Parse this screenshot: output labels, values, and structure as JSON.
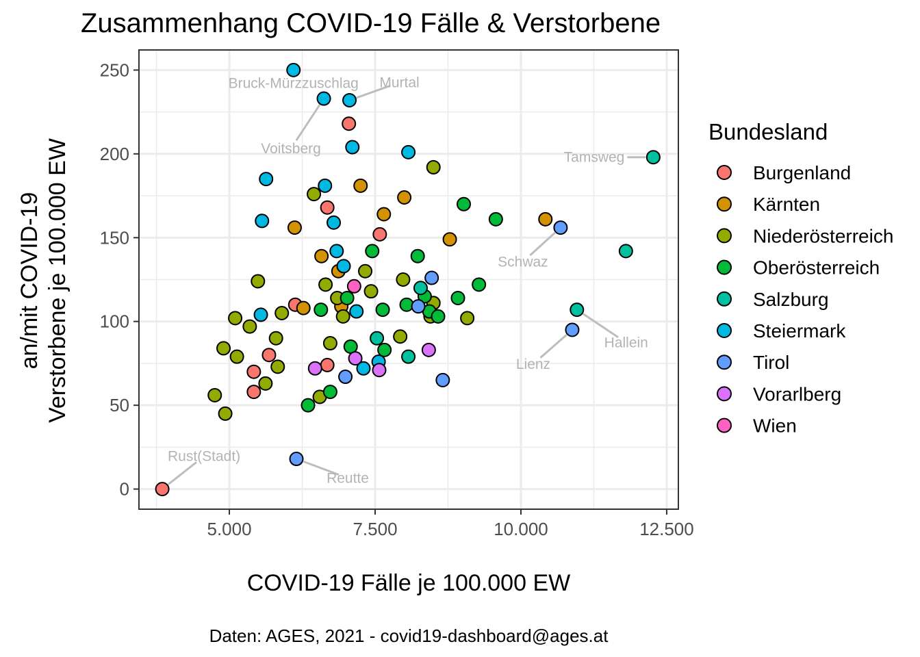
{
  "chart_data": {
    "type": "scatter",
    "title": "Zusammenhang COVID-19 Fälle & Verstorbene",
    "xlabel": "COVID-19 Fälle je 100.000 EW",
    "ylabel": [
      "an/mit COVID-19",
      "Verstorbene je 100.000 EW"
    ],
    "caption": "Daten: AGES, 2021 - covid19-dashboard@ages.at",
    "xlim": [
      3450,
      12700
    ],
    "ylim": [
      -12,
      262
    ],
    "x_ticks": [
      5000,
      7500,
      10000,
      12500
    ],
    "x_tick_labels": [
      "5.000",
      "7.500",
      "10.000",
      "12.500"
    ],
    "y_ticks": [
      0,
      50,
      100,
      150,
      200,
      250
    ],
    "y_tick_labels": [
      "0",
      "50",
      "100",
      "150",
      "200",
      "250"
    ],
    "grid": true,
    "legend": {
      "title": "Bundesland",
      "placement": "right",
      "entries": [
        "Burgenland",
        "Kärnten",
        "Niederösterreich",
        "Oberösterreich",
        "Salzburg",
        "Steiermark",
        "Tirol",
        "Vorarlberg",
        "Wien"
      ],
      "colors": [
        "#F8766D",
        "#D39200",
        "#93AA00",
        "#00BA38",
        "#00C19F",
        "#00B9E3",
        "#619CFF",
        "#DB72FB",
        "#FF61C3"
      ]
    },
    "series": [
      {
        "name": "Burgenland",
        "color": "#F8766D",
        "points": [
          [
            3850,
            0
          ],
          [
            5420,
            58
          ],
          [
            5420,
            70
          ],
          [
            5680,
            80
          ],
          [
            6680,
            74
          ],
          [
            6130,
            110
          ],
          [
            6680,
            168
          ],
          [
            7050,
            218
          ],
          [
            7580,
            152
          ]
        ]
      },
      {
        "name": "Kärnten",
        "color": "#D39200",
        "points": [
          [
            6120,
            156
          ],
          [
            6270,
            108
          ],
          [
            6580,
            139
          ],
          [
            6870,
            130
          ],
          [
            6920,
            109
          ],
          [
            7250,
            181
          ],
          [
            7650,
            164
          ],
          [
            8000,
            174
          ],
          [
            8780,
            149
          ],
          [
            10420,
            161
          ]
        ]
      },
      {
        "name": "Niederösterreich",
        "color": "#93AA00",
        "points": [
          [
            4750,
            56
          ],
          [
            4900,
            84
          ],
          [
            4930,
            45
          ],
          [
            5100,
            102
          ],
          [
            5130,
            79
          ],
          [
            5350,
            97
          ],
          [
            5490,
            124
          ],
          [
            5620,
            63
          ],
          [
            5800,
            90
          ],
          [
            5830,
            73
          ],
          [
            5900,
            105
          ],
          [
            6450,
            176
          ],
          [
            6550,
            55
          ],
          [
            6650,
            122
          ],
          [
            6730,
            87
          ],
          [
            6850,
            114
          ],
          [
            6950,
            103
          ],
          [
            7330,
            130
          ],
          [
            7430,
            118
          ],
          [
            7930,
            91
          ],
          [
            7980,
            125
          ],
          [
            8450,
            103
          ],
          [
            8500,
            111
          ],
          [
            8500,
            192
          ],
          [
            9080,
            102
          ]
        ]
      },
      {
        "name": "Oberösterreich",
        "color": "#00BA38",
        "points": [
          [
            6350,
            50
          ],
          [
            6570,
            107
          ],
          [
            6730,
            58
          ],
          [
            7020,
            114
          ],
          [
            7080,
            85
          ],
          [
            7450,
            142
          ],
          [
            7630,
            107
          ],
          [
            7660,
            83
          ],
          [
            8040,
            110
          ],
          [
            8230,
            139
          ],
          [
            8350,
            115
          ],
          [
            8430,
            106
          ],
          [
            8580,
            103
          ],
          [
            8920,
            114
          ],
          [
            9020,
            170
          ],
          [
            9280,
            122
          ],
          [
            9570,
            161
          ]
        ]
      },
      {
        "name": "Salzburg",
        "color": "#00C19F",
        "points": [
          [
            7530,
            90
          ],
          [
            8070,
            79
          ],
          [
            8280,
            120
          ],
          [
            10960,
            107
          ],
          [
            11800,
            142
          ],
          [
            12270,
            198
          ]
        ]
      },
      {
        "name": "Steiermark",
        "color": "#00B9E3",
        "points": [
          [
            5540,
            104
          ],
          [
            5560,
            160
          ],
          [
            5630,
            185
          ],
          [
            6100,
            250
          ],
          [
            6620,
            233
          ],
          [
            6640,
            181
          ],
          [
            6790,
            159
          ],
          [
            6840,
            142
          ],
          [
            6960,
            133
          ],
          [
            7060,
            232
          ],
          [
            7110,
            204
          ],
          [
            7180,
            106
          ],
          [
            7300,
            72
          ],
          [
            7560,
            76
          ],
          [
            8070,
            201
          ]
        ]
      },
      {
        "name": "Tirol",
        "color": "#619CFF",
        "points": [
          [
            6150,
            18
          ],
          [
            6990,
            67
          ],
          [
            8240,
            109
          ],
          [
            8470,
            126
          ],
          [
            8660,
            65
          ],
          [
            10680,
            156
          ],
          [
            10880,
            95
          ]
        ]
      },
      {
        "name": "Vorarlberg",
        "color": "#DB72FB",
        "points": [
          [
            6470,
            72
          ],
          [
            7160,
            78
          ],
          [
            7570,
            71
          ],
          [
            8420,
            83
          ]
        ]
      },
      {
        "name": "Wien",
        "color": "#FF61C3",
        "points": [
          [
            7140,
            121
          ]
        ]
      }
    ],
    "annotations": [
      {
        "text": "Bruck-Mürzzuschlag",
        "point": [
          6100,
          250
        ]
      },
      {
        "text": "Murtal",
        "point": [
          7060,
          232
        ]
      },
      {
        "text": "Voitsberg",
        "point": [
          6620,
          233
        ]
      },
      {
        "text": "Tamsweg",
        "point": [
          12270,
          198
        ]
      },
      {
        "text": "Schwaz",
        "point": [
          10680,
          156
        ]
      },
      {
        "text": "Hallein",
        "point": [
          10960,
          107
        ]
      },
      {
        "text": "Lienz",
        "point": [
          10880,
          95
        ]
      },
      {
        "text": "Rust(Stadt)",
        "point": [
          3850,
          0
        ]
      },
      {
        "text": "Reutte",
        "point": [
          6150,
          18
        ]
      }
    ]
  }
}
